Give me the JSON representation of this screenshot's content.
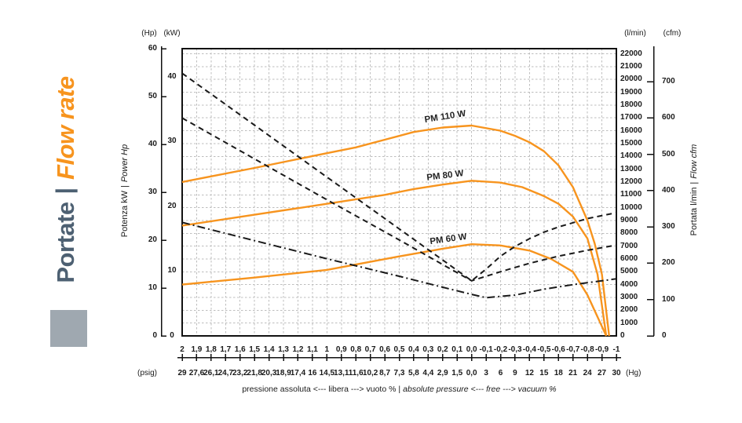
{
  "page_title": {
    "it": "Portate",
    "sep": "|",
    "en": "Flow rate"
  },
  "colors": {
    "accent_orange": "#F7941E",
    "title_slate": "#4D6072",
    "square_gray": "#9FA8B0",
    "curve_black": "#1A1A1A",
    "grid_gray": "#BDBDBD"
  },
  "axis_headers": {
    "hp": "(Hp)",
    "kw": "(kW)",
    "lmin": "(l/min)",
    "cfm": "(cfm)"
  },
  "axis_labels": {
    "left": {
      "it": "Potenza kW",
      "sep": "|",
      "en": "Power Hp"
    },
    "right": {
      "it": "Portata l/min",
      "sep": "|",
      "en": "Flow cfm"
    }
  },
  "x_units": {
    "psig": "(psig)",
    "hg": "(Hg)"
  },
  "caption": {
    "it": "pressione assoluta <--- libera --->  vuoto %",
    "sep": "|",
    "en": "absolute pressure <--- free --->  vacuum %"
  },
  "chart_data": {
    "type": "line",
    "title": "Portate | Flow rate",
    "x_axis": {
      "description": "relative pressure (bar), 2 at left to -1 at right",
      "range": [
        2,
        -1
      ],
      "pressures": [
        2,
        1.9,
        1.8,
        1.7,
        1.6,
        1.5,
        1.4,
        1.3,
        1.2,
        1.1,
        1,
        0.9,
        0.8,
        0.7,
        0.6,
        0.5,
        0.4,
        0.3,
        0.2,
        0.1,
        0,
        -0.1,
        -0.2,
        -0.3,
        -0.4,
        -0.5,
        -0.6,
        -0.7,
        -0.8,
        -0.9,
        -1
      ],
      "labels_bar": [
        "2",
        "1,9",
        "1,8",
        "1,7",
        "1,6",
        "1,5",
        "1,4",
        "1,3",
        "1,2",
        "1,1",
        "1",
        "0,9",
        "0,8",
        "0,7",
        "0,6",
        "0,5",
        "0,4",
        "0,3",
        "0,2",
        "0,1",
        "0,0",
        "-0,1",
        "-0,2",
        "-0,3",
        "-0,4",
        "-0,5",
        "-0,6",
        "-0,7",
        "-0,8",
        "-0,9",
        "-1"
      ],
      "labels_psig_hg": [
        "29",
        "27,6",
        "26,1",
        "24,7",
        "23,2",
        "21,8",
        "20,3",
        "18,9",
        "17,4",
        "16",
        "14,5",
        "13,1",
        "11,6",
        "10,2",
        "8,7",
        "7,3",
        "5,8",
        "4,4",
        "2,9",
        "1,5",
        "0,0",
        "3",
        "6",
        "9",
        "12",
        "15",
        "18",
        "21",
        "24",
        "27",
        "30"
      ]
    },
    "y_axes": {
      "hp": {
        "ticks": [
          0,
          10,
          20,
          30,
          40,
          50,
          60
        ],
        "max_at_top": 60
      },
      "kw": {
        "ticks": [
          0,
          10,
          20,
          30,
          40
        ],
        "max_at_top": 44.3
      },
      "lmin": {
        "ticks": [
          0,
          1000,
          2000,
          3000,
          4000,
          5000,
          6000,
          7000,
          8000,
          9000,
          10000,
          11000,
          12000,
          13000,
          14000,
          15000,
          16000,
          17000,
          18000,
          19000,
          20000,
          21000,
          22000
        ],
        "max_at_top": 22400
      },
      "cfm": {
        "ticks": [
          0,
          100,
          200,
          300,
          400,
          500,
          600,
          700
        ],
        "max_at_top": 791
      }
    },
    "series": [
      {
        "name": "PM 110 W flow",
        "kind": "flow",
        "unit": "l/min",
        "style": "solid",
        "color": "#F7941E",
        "points": [
          [
            2,
            12000
          ],
          [
            1.5,
            13100
          ],
          [
            1.0,
            14250
          ],
          [
            0.8,
            14700
          ],
          [
            0.6,
            15300
          ],
          [
            0.4,
            15900
          ],
          [
            0.2,
            16250
          ],
          [
            0,
            16400
          ],
          [
            -0.2,
            16000
          ],
          [
            -0.3,
            15600
          ],
          [
            -0.4,
            15100
          ],
          [
            -0.5,
            14400
          ],
          [
            -0.6,
            13300
          ],
          [
            -0.7,
            11600
          ],
          [
            -0.8,
            9000
          ],
          [
            -0.85,
            7200
          ],
          [
            -0.9,
            4800
          ],
          [
            -0.95,
            0
          ]
        ]
      },
      {
        "name": "PM 80 W flow",
        "kind": "flow",
        "unit": "l/min",
        "style": "solid",
        "color": "#F7941E",
        "points": [
          [
            2,
            8600
          ],
          [
            1.5,
            9450
          ],
          [
            1.0,
            10300
          ],
          [
            0.6,
            11000
          ],
          [
            0.4,
            11450
          ],
          [
            0.2,
            11800
          ],
          [
            0,
            12100
          ],
          [
            -0.2,
            11950
          ],
          [
            -0.35,
            11600
          ],
          [
            -0.5,
            10900
          ],
          [
            -0.6,
            10300
          ],
          [
            -0.7,
            9300
          ],
          [
            -0.8,
            7600
          ],
          [
            -0.87,
            4800
          ],
          [
            -0.93,
            0
          ]
        ]
      },
      {
        "name": "PM 60 W flow",
        "kind": "flow",
        "unit": "l/min",
        "style": "solid",
        "color": "#F7941E",
        "points": [
          [
            2,
            4000
          ],
          [
            1.5,
            4550
          ],
          [
            1.0,
            5150
          ],
          [
            0.5,
            6200
          ],
          [
            0.2,
            6800
          ],
          [
            0,
            7150
          ],
          [
            -0.2,
            7050
          ],
          [
            -0.4,
            6650
          ],
          [
            -0.55,
            6000
          ],
          [
            -0.7,
            5000
          ],
          [
            -0.8,
            3200
          ],
          [
            -0.93,
            0
          ]
        ]
      },
      {
        "name": "PM 110 W power",
        "kind": "power",
        "unit": "kW",
        "style": "dashed",
        "color": "#1A1A1A",
        "points": [
          [
            2,
            40.5
          ],
          [
            1.5,
            32.5
          ],
          [
            1.0,
            24.5
          ],
          [
            0.5,
            16.5
          ],
          [
            0.2,
            11.7
          ],
          [
            0,
            8.5
          ],
          [
            -0.1,
            10.3
          ],
          [
            -0.2,
            12.3
          ],
          [
            -0.3,
            13.8
          ],
          [
            -0.4,
            15.0
          ],
          [
            -0.5,
            16.0
          ],
          [
            -0.6,
            16.8
          ],
          [
            -0.8,
            18.1
          ],
          [
            -1,
            19.0
          ]
        ]
      },
      {
        "name": "PM 80 W power",
        "kind": "power",
        "unit": "kW",
        "style": "dashed",
        "color": "#1A1A1A",
        "points": [
          [
            2,
            33.6
          ],
          [
            1.5,
            27.3
          ],
          [
            1.0,
            21.0
          ],
          [
            0.5,
            14.8
          ],
          [
            0.2,
            11.0
          ],
          [
            0,
            8.5
          ],
          [
            -0.2,
            9.9
          ],
          [
            -0.4,
            11.2
          ],
          [
            -0.6,
            12.3
          ],
          [
            -0.8,
            13.2
          ],
          [
            -1,
            14.0
          ]
        ]
      },
      {
        "name": "PM 60 W power",
        "kind": "power",
        "unit": "kW",
        "style": "dashdot",
        "color": "#1A1A1A",
        "points": [
          [
            2,
            17.5
          ],
          [
            1.5,
            14.7
          ],
          [
            1.0,
            11.9
          ],
          [
            0.5,
            9.2
          ],
          [
            0.2,
            7.5
          ],
          [
            0,
            6.4
          ],
          [
            -0.1,
            5.9
          ],
          [
            -0.3,
            6.3
          ],
          [
            -0.5,
            7.2
          ],
          [
            -0.7,
            7.9
          ],
          [
            -1,
            8.8
          ]
        ]
      }
    ],
    "annotations": [
      {
        "text": "PM 110 W",
        "pressure": 0.18,
        "lmin": 17100,
        "angle": -9
      },
      {
        "text": "PM 80 W",
        "pressure": 0.18,
        "lmin": 12500,
        "angle": -7
      },
      {
        "text": "PM 60 W",
        "pressure": 0.16,
        "lmin": 7500,
        "angle": -8
      }
    ],
    "legend": "none",
    "grid": "on, dashed, vertical every 0.1 bar, horizontal every 1000 l/min"
  }
}
